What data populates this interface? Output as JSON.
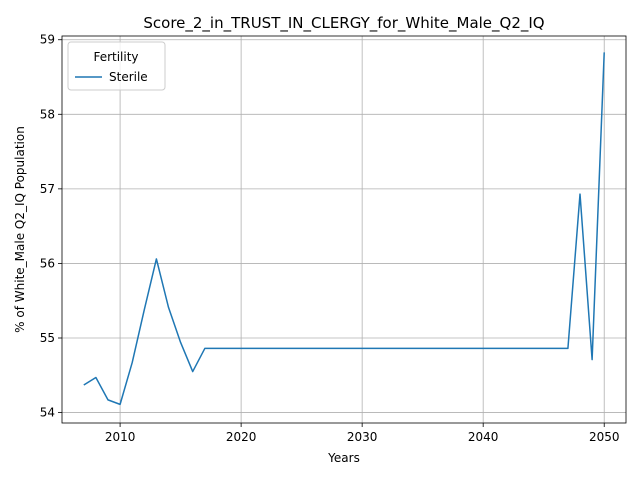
{
  "chart_data": {
    "type": "line",
    "title": "Score_2_in_TRUST_IN_CLERGY_for_White_Male_Q2_IQ",
    "xlabel": "Years",
    "ylabel": "% of White_Male Q2_IQ Population",
    "xlim": [
      2005.2,
      2051.8
    ],
    "ylim": [
      53.86,
      59.05
    ],
    "xticks": [
      2010,
      2020,
      2030,
      2040,
      2050
    ],
    "yticks": [
      54,
      55,
      56,
      57,
      58,
      59
    ],
    "grid": true,
    "legend": {
      "title": "Fertility",
      "placement": "top-left"
    },
    "series": [
      {
        "name": "Sterile",
        "color": "#1f77b4",
        "x": [
          2007,
          2008,
          2009,
          2010,
          2011,
          2012,
          2013,
          2014,
          2015,
          2016,
          2017,
          2018,
          2019,
          2020,
          2021,
          2022,
          2023,
          2024,
          2025,
          2026,
          2027,
          2028,
          2029,
          2030,
          2031,
          2032,
          2033,
          2034,
          2035,
          2036,
          2037,
          2038,
          2039,
          2040,
          2041,
          2042,
          2043,
          2044,
          2045,
          2046,
          2047,
          2048,
          2049,
          2050
        ],
        "y": [
          54.37,
          54.47,
          54.17,
          54.11,
          54.67,
          55.38,
          56.06,
          55.41,
          54.94,
          54.55,
          54.86,
          54.86,
          54.86,
          54.86,
          54.86,
          54.86,
          54.86,
          54.86,
          54.86,
          54.86,
          54.86,
          54.86,
          54.86,
          54.86,
          54.86,
          54.86,
          54.86,
          54.86,
          54.86,
          54.86,
          54.86,
          54.86,
          54.86,
          54.86,
          54.86,
          54.86,
          54.86,
          54.86,
          54.86,
          54.86,
          54.86,
          56.93,
          54.71,
          58.83
        ]
      }
    ]
  }
}
